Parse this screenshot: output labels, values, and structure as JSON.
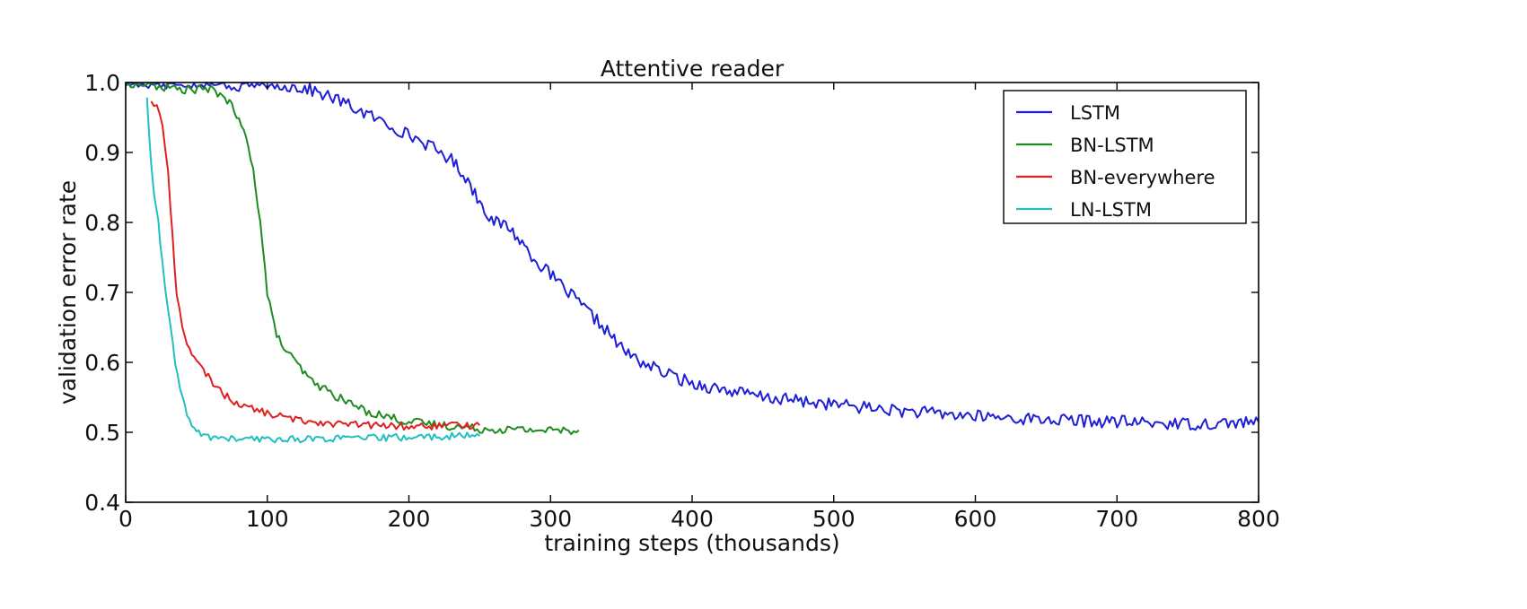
{
  "chart_data": {
    "type": "line",
    "title": "Attentive reader",
    "xlabel": "training steps (thousands)",
    "ylabel": "validation error rate",
    "xlim": [
      0,
      800
    ],
    "ylim": [
      0.4,
      1.0
    ],
    "xticks": [
      "0",
      "100",
      "200",
      "300",
      "400",
      "500",
      "600",
      "700",
      "800"
    ],
    "yticks": [
      "0.4",
      "0.5",
      "0.6",
      "0.7",
      "0.8",
      "0.9",
      "1.0"
    ],
    "grid": false,
    "legend_position": "top-right",
    "series": [
      {
        "name": "LSTM",
        "color": "#1f1fd6",
        "points": [
          [
            0,
            1.0
          ],
          [
            50,
            1.0
          ],
          [
            80,
            0.995
          ],
          [
            100,
            1.0
          ],
          [
            130,
            0.99
          ],
          [
            150,
            0.975
          ],
          [
            170,
            0.955
          ],
          [
            190,
            0.935
          ],
          [
            210,
            0.915
          ],
          [
            230,
            0.89
          ],
          [
            240,
            0.865
          ],
          [
            250,
            0.83
          ],
          [
            260,
            0.8
          ],
          [
            270,
            0.795
          ],
          [
            280,
            0.77
          ],
          [
            290,
            0.745
          ],
          [
            300,
            0.725
          ],
          [
            320,
            0.685
          ],
          [
            340,
            0.645
          ],
          [
            350,
            0.62
          ],
          [
            360,
            0.605
          ],
          [
            380,
            0.585
          ],
          [
            400,
            0.57
          ],
          [
            430,
            0.558
          ],
          [
            450,
            0.55
          ],
          [
            500,
            0.54
          ],
          [
            550,
            0.53
          ],
          [
            600,
            0.523
          ],
          [
            650,
            0.518
          ],
          [
            700,
            0.515
          ],
          [
            750,
            0.512
          ],
          [
            800,
            0.515
          ]
        ]
      },
      {
        "name": "BN-LSTM",
        "color": "#1e8c1e",
        "points": [
          [
            0,
            1.0
          ],
          [
            20,
            0.995
          ],
          [
            40,
            0.99
          ],
          [
            60,
            0.99
          ],
          [
            70,
            0.98
          ],
          [
            75,
            0.965
          ],
          [
            80,
            0.945
          ],
          [
            85,
            0.92
          ],
          [
            90,
            0.88
          ],
          [
            95,
            0.8
          ],
          [
            100,
            0.7
          ],
          [
            105,
            0.65
          ],
          [
            110,
            0.625
          ],
          [
            120,
            0.6
          ],
          [
            130,
            0.575
          ],
          [
            150,
            0.55
          ],
          [
            170,
            0.53
          ],
          [
            200,
            0.515
          ],
          [
            250,
            0.505
          ],
          [
            300,
            0.503
          ],
          [
            320,
            0.503
          ]
        ]
      },
      {
        "name": "BN-everywhere",
        "color": "#e02020",
        "points": [
          [
            18,
            0.975
          ],
          [
            22,
            0.965
          ],
          [
            26,
            0.94
          ],
          [
            30,
            0.87
          ],
          [
            33,
            0.78
          ],
          [
            36,
            0.7
          ],
          [
            40,
            0.65
          ],
          [
            45,
            0.62
          ],
          [
            50,
            0.6
          ],
          [
            60,
            0.575
          ],
          [
            70,
            0.553
          ],
          [
            80,
            0.54
          ],
          [
            100,
            0.527
          ],
          [
            120,
            0.518
          ],
          [
            150,
            0.512
          ],
          [
            200,
            0.508
          ],
          [
            250,
            0.51
          ]
        ]
      },
      {
        "name": "LN-LSTM",
        "color": "#20c0c0",
        "points": [
          [
            15,
            0.98
          ],
          [
            18,
            0.88
          ],
          [
            20,
            0.84
          ],
          [
            23,
            0.8
          ],
          [
            26,
            0.74
          ],
          [
            30,
            0.67
          ],
          [
            35,
            0.6
          ],
          [
            40,
            0.55
          ],
          [
            45,
            0.515
          ],
          [
            50,
            0.5
          ],
          [
            60,
            0.493
          ],
          [
            80,
            0.49
          ],
          [
            100,
            0.49
          ],
          [
            150,
            0.491
          ],
          [
            200,
            0.493
          ],
          [
            250,
            0.495
          ]
        ]
      }
    ]
  }
}
